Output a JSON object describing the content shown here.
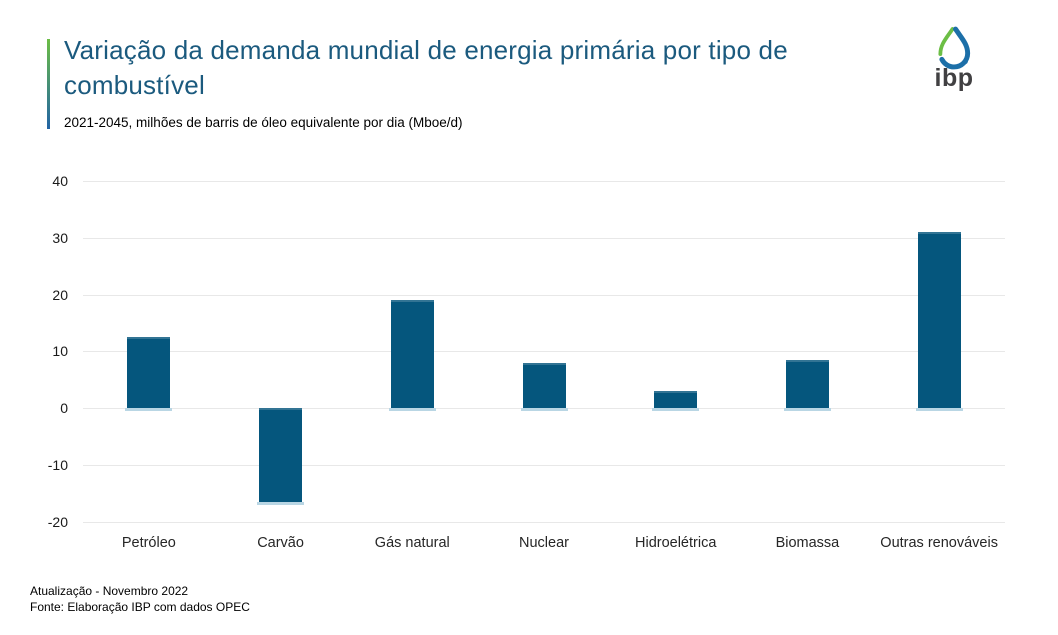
{
  "header": {
    "title": "Variação da demanda mundial de energia primária por tipo de combustível",
    "subtitle": "2021-2045, milhões de barris de óleo equivalente por dia (Mboe/d)",
    "logo_text": "ibp"
  },
  "footer": {
    "update_line": "Atualização - Novembro 2022",
    "source_line": "Fonte: Elaboração IBP com dados OPEC"
  },
  "colors": {
    "bar": "#05567D",
    "bar_shadow": "#B9D6E4",
    "gridline": "#E8E8E8",
    "title": "#1B5A7E",
    "accent_green": "#6CBE45",
    "accent_blue": "#2264A5",
    "logo_text_color": "#414042",
    "logo_drop_green": "#6CBE45",
    "logo_drop_blue": "#1C6FA8"
  },
  "chart_data": {
    "type": "bar",
    "categories": [
      "Petróleo",
      "Carvão",
      "Gás natural",
      "Nuclear",
      "Hidroelétrica",
      "Biomassa",
      "Outras renováveis"
    ],
    "values": [
      12.5,
      -16.5,
      19,
      8,
      3,
      8.5,
      31
    ],
    "title": "Variação da demanda mundial de energia primária por tipo de combustível",
    "subtitle": "2021-2045, milhões de barris de óleo equivalente por dia (Mboe/d)",
    "xlabel": "",
    "ylabel": "",
    "ylim": [
      -20,
      40
    ],
    "yticks": [
      40,
      30,
      20,
      10,
      0,
      -10,
      -20
    ],
    "grid": true,
    "legend": false,
    "bar_color": "#05567D"
  }
}
